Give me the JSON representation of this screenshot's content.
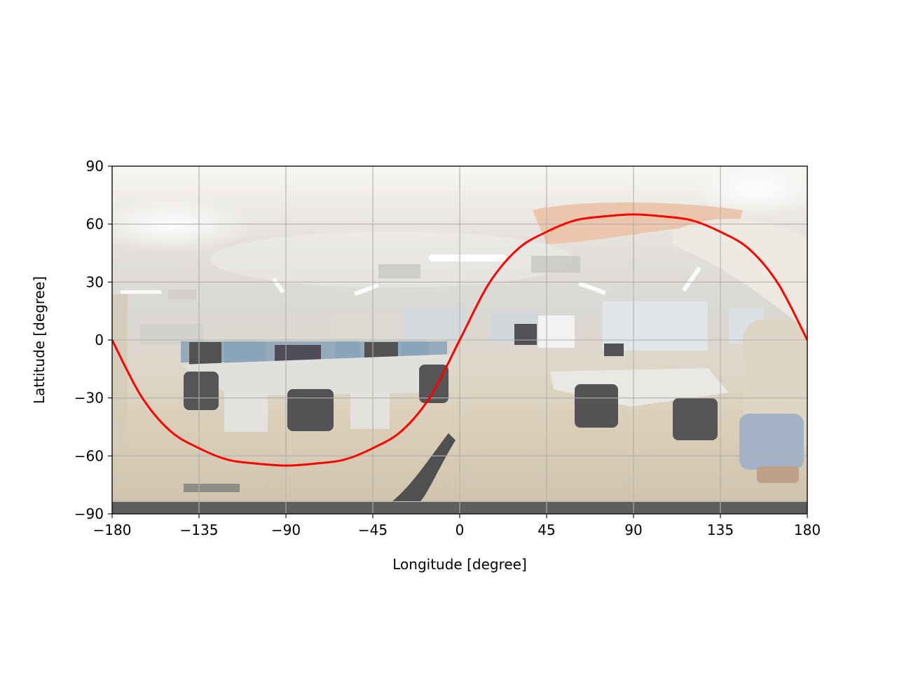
{
  "chart_data": {
    "type": "line",
    "title": "",
    "xlabel": "Longitude [degree]",
    "ylabel": "Lattitude [degree]",
    "xlim": [
      -180,
      180
    ],
    "ylim": [
      -90,
      90
    ],
    "xticks": [
      -180,
      -135,
      -90,
      -45,
      0,
      45,
      90,
      135,
      180
    ],
    "xtick_labels": [
      "−180",
      "−135",
      "−90",
      "−45",
      "0",
      "45",
      "90",
      "135",
      "180"
    ],
    "yticks": [
      -90,
      -60,
      -30,
      0,
      30,
      60,
      90
    ],
    "ytick_labels": [
      "−90",
      "−60",
      "−30",
      "0",
      "30",
      "60",
      "90"
    ],
    "grid": true,
    "background": "equirectangular 360-degree panorama photo of an office/lab room",
    "series": [
      {
        "color": "#ff0000",
        "x": [
          -180,
          -165,
          -150,
          -135,
          -120,
          -105,
          -90,
          -75,
          -60,
          -45,
          -30,
          -15,
          0,
          15,
          30,
          45,
          60,
          75,
          90,
          105,
          120,
          135,
          150,
          165,
          180
        ],
        "y": [
          0,
          -29,
          -47,
          -56,
          -62,
          -64,
          -65,
          -64,
          -62,
          -56,
          -47,
          -29,
          0,
          29,
          47,
          56,
          62,
          64,
          65,
          64,
          62,
          56,
          47,
          29,
          0
        ]
      }
    ]
  },
  "colors": {
    "curve": "#ff0000",
    "grid": "#b0b0b0",
    "axes": "#000000"
  }
}
